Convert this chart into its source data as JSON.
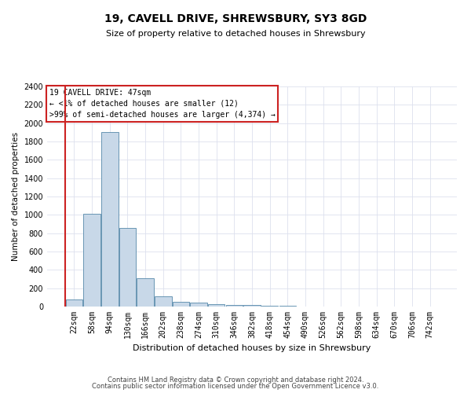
{
  "title1": "19, CAVELL DRIVE, SHREWSBURY, SY3 8GD",
  "title2": "Size of property relative to detached houses in Shrewsbury",
  "xlabel": "Distribution of detached houses by size in Shrewsbury",
  "ylabel": "Number of detached properties",
  "bar_labels": [
    "22sqm",
    "58sqm",
    "94sqm",
    "130sqm",
    "166sqm",
    "202sqm",
    "238sqm",
    "274sqm",
    "310sqm",
    "346sqm",
    "382sqm",
    "418sqm",
    "454sqm",
    "490sqm",
    "526sqm",
    "562sqm",
    "598sqm",
    "634sqm",
    "670sqm",
    "706sqm",
    "742sqm"
  ],
  "bar_values": [
    80,
    1010,
    1900,
    860,
    310,
    115,
    55,
    45,
    30,
    20,
    15,
    5,
    5,
    2,
    2,
    1,
    1,
    1,
    1,
    1,
    1
  ],
  "bar_color": "#c8d8e8",
  "bar_edge_color": "#5588aa",
  "highlight_color": "#cc2222",
  "ylim": [
    0,
    2400
  ],
  "yticks": [
    0,
    200,
    400,
    600,
    800,
    1000,
    1200,
    1400,
    1600,
    1800,
    2000,
    2200,
    2400
  ],
  "annotation_text": "19 CAVELL DRIVE: 47sqm\n← <1% of detached houses are smaller (12)\n>99% of semi-detached houses are larger (4,374) →",
  "annotation_box_color": "#ffffff",
  "annotation_box_edge": "#cc2222",
  "footer1": "Contains HM Land Registry data © Crown copyright and database right 2024.",
  "footer2": "Contains public sector information licensed under the Open Government Licence v3.0.",
  "bg_color": "#ffffff",
  "grid_color": "#dde0ee",
  "title1_fontsize": 10,
  "title2_fontsize": 8,
  "xlabel_fontsize": 8,
  "ylabel_fontsize": 7.5,
  "tick_fontsize": 7,
  "ann_fontsize": 7,
  "footer_fontsize": 6
}
